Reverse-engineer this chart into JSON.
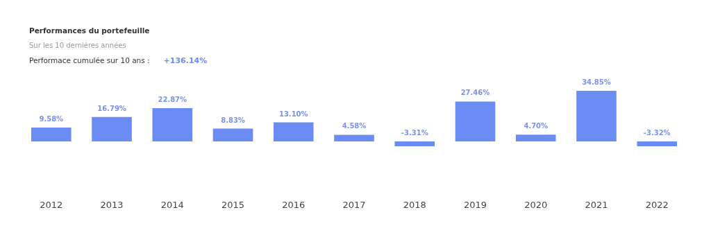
{
  "chart_data": {
    "type": "bar",
    "title": "Performances du portefeuille",
    "subtitle": "Sur les 10 dernières années",
    "annotations": [
      "Performace cumulée sur 10 ans : ",
      "+136.14%"
    ],
    "categories": [
      "2012",
      "2013",
      "2014",
      "2015",
      "2016",
      "2017",
      "2018",
      "2019",
      "2020",
      "2021",
      "2022"
    ],
    "values": [
      9.58,
      16.79,
      22.87,
      8.83,
      13.1,
      4.58,
      -3.31,
      27.46,
      4.7,
      34.85,
      -3.32
    ],
    "value_labels": [
      "9.58%",
      "16.79%",
      "22.87%",
      "8.83%",
      "13.10%",
      "4.58%",
      "-3.31%",
      "27.46%",
      "4.70%",
      "34.85%",
      "-3.32%"
    ],
    "color": "#6b8cf2",
    "grid": false,
    "tick_labels": "x"
  }
}
